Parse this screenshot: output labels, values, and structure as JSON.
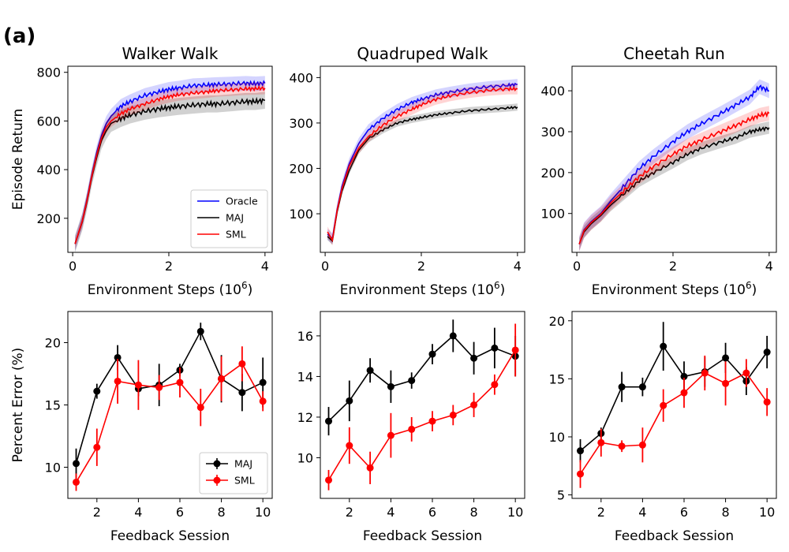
{
  "panel_label": "(a)",
  "colors": {
    "oracle": "#0000ff",
    "maj": "#000000",
    "sml": "#ff0000"
  },
  "chart_data": [
    {
      "type": "line",
      "title": "Walker Walk",
      "xlabel": "Environment Steps (10",
      "xlabel_sup": "6",
      "xlabel_end": ")",
      "ylabel": "Episode Return",
      "xlim": [
        -0.1,
        4.15
      ],
      "ylim": [
        60,
        825
      ],
      "xticks": [
        0,
        2,
        4
      ],
      "yticks": [
        200,
        400,
        600,
        800
      ],
      "legend": {
        "placement": "bottom-right",
        "entries": [
          "Oracle",
          "MAJ",
          "SML"
        ]
      },
      "series": [
        {
          "name": "Oracle",
          "color": "#0000ff",
          "band": 30,
          "x": [
            0.05,
            0.2,
            0.3,
            0.4,
            0.5,
            0.6,
            0.7,
            0.8,
            1.0,
            1.2,
            1.5,
            1.8,
            2.0,
            2.2,
            2.5,
            2.8,
            3.0,
            3.3,
            3.6,
            3.8,
            4.0
          ],
          "y": [
            95,
            190,
            280,
            380,
            470,
            540,
            590,
            620,
            660,
            680,
            705,
            720,
            730,
            735,
            745,
            748,
            750,
            752,
            755,
            753,
            755
          ]
        },
        {
          "name": "MAJ",
          "color": "#000000",
          "band": 35,
          "x": [
            0.05,
            0.2,
            0.3,
            0.4,
            0.5,
            0.6,
            0.7,
            0.8,
            1.0,
            1.2,
            1.5,
            1.8,
            2.0,
            2.2,
            2.5,
            2.8,
            3.0,
            3.3,
            3.6,
            3.8,
            4.0
          ],
          "y": [
            95,
            185,
            270,
            370,
            450,
            520,
            560,
            590,
            610,
            625,
            640,
            650,
            655,
            660,
            665,
            670,
            670,
            675,
            680,
            680,
            685
          ]
        },
        {
          "name": "SML",
          "color": "#ff0000",
          "band": 25,
          "x": [
            0.05,
            0.2,
            0.3,
            0.4,
            0.5,
            0.6,
            0.7,
            0.8,
            1.0,
            1.2,
            1.5,
            1.8,
            2.0,
            2.2,
            2.5,
            2.8,
            3.0,
            3.3,
            3.6,
            3.8,
            4.0
          ],
          "y": [
            95,
            188,
            275,
            375,
            460,
            530,
            575,
            600,
            630,
            650,
            670,
            690,
            700,
            708,
            715,
            720,
            725,
            728,
            732,
            733,
            735
          ]
        }
      ]
    },
    {
      "type": "line",
      "title": "Quadruped Walk",
      "xlabel": "Environment Steps (10",
      "xlabel_sup": "6",
      "xlabel_end": ")",
      "ylabel": "",
      "xlim": [
        -0.1,
        4.15
      ],
      "ylim": [
        15,
        425
      ],
      "xticks": [
        0,
        2,
        4
      ],
      "yticks": [
        100,
        200,
        300,
        400
      ],
      "series": [
        {
          "name": "Oracle",
          "color": "#0000ff",
          "band": 12,
          "x": [
            0.05,
            0.15,
            0.25,
            0.35,
            0.5,
            0.7,
            0.9,
            1.2,
            1.5,
            1.8,
            2.0,
            2.3,
            2.6,
            3.0,
            3.4,
            3.8,
            4.0
          ],
          "y": [
            55,
            45,
            110,
            160,
            210,
            255,
            285,
            310,
            330,
            345,
            352,
            362,
            368,
            375,
            380,
            383,
            385
          ]
        },
        {
          "name": "MAJ",
          "color": "#000000",
          "band": 8,
          "x": [
            0.05,
            0.15,
            0.25,
            0.35,
            0.5,
            0.7,
            0.9,
            1.2,
            1.5,
            1.8,
            2.0,
            2.3,
            2.6,
            3.0,
            3.4,
            3.8,
            4.0
          ],
          "y": [
            50,
            40,
            105,
            150,
            195,
            240,
            265,
            285,
            300,
            308,
            312,
            318,
            322,
            327,
            330,
            333,
            335
          ]
        },
        {
          "name": "SML",
          "color": "#ff0000",
          "band": 12,
          "x": [
            0.05,
            0.15,
            0.25,
            0.35,
            0.5,
            0.7,
            0.9,
            1.2,
            1.5,
            1.8,
            2.0,
            2.3,
            2.6,
            3.0,
            3.4,
            3.8,
            4.0
          ],
          "y": [
            60,
            42,
            108,
            155,
            205,
            245,
            270,
            295,
            315,
            330,
            340,
            352,
            360,
            367,
            372,
            375,
            375
          ]
        }
      ]
    },
    {
      "type": "line",
      "title": "Cheetah Run",
      "xlabel": "Environment Steps (10",
      "xlabel_sup": "6",
      "xlabel_end": ")",
      "ylabel": "",
      "xlim": [
        -0.1,
        4.15
      ],
      "ylim": [
        5,
        460
      ],
      "xticks": [
        0,
        2,
        4
      ],
      "yticks": [
        100,
        200,
        300,
        400
      ],
      "series": [
        {
          "name": "Oracle",
          "color": "#0000ff",
          "band": 18,
          "x": [
            0.05,
            0.15,
            0.3,
            0.5,
            0.7,
            1.0,
            1.3,
            1.6,
            2.0,
            2.3,
            2.6,
            3.0,
            3.3,
            3.6,
            3.8,
            4.0
          ],
          "y": [
            25,
            60,
            80,
            100,
            130,
            170,
            210,
            240,
            275,
            300,
            320,
            345,
            365,
            385,
            410,
            400
          ]
        },
        {
          "name": "MAJ",
          "color": "#000000",
          "band": 15,
          "x": [
            0.05,
            0.15,
            0.3,
            0.5,
            0.7,
            1.0,
            1.3,
            1.6,
            2.0,
            2.3,
            2.6,
            3.0,
            3.3,
            3.6,
            3.8,
            4.0
          ],
          "y": [
            25,
            55,
            75,
            95,
            120,
            150,
            180,
            200,
            225,
            245,
            260,
            275,
            285,
            300,
            305,
            310
          ]
        },
        {
          "name": "SML",
          "color": "#ff0000",
          "band": 18,
          "x": [
            0.05,
            0.15,
            0.3,
            0.5,
            0.7,
            1.0,
            1.3,
            1.6,
            2.0,
            2.3,
            2.6,
            3.0,
            3.3,
            3.6,
            3.8,
            4.0
          ],
          "y": [
            25,
            58,
            78,
            98,
            125,
            158,
            190,
            215,
            245,
            265,
            280,
            300,
            315,
            330,
            340,
            345
          ]
        }
      ]
    },
    {
      "type": "line",
      "title": "",
      "xlabel": "Feedback Session",
      "ylabel": "Percent Error (%)",
      "xlim": [
        0.6,
        10.45
      ],
      "ylim": [
        7.5,
        22.5
      ],
      "xticks": [
        2,
        4,
        6,
        8,
        10
      ],
      "yticks": [
        10,
        15,
        20
      ],
      "legend": {
        "placement": "bottom-right",
        "entries": [
          "MAJ",
          "SML"
        ]
      },
      "series": [
        {
          "name": "MAJ",
          "color": "#000000",
          "x": [
            1,
            2,
            3,
            4,
            5,
            6,
            7,
            8,
            9,
            10
          ],
          "y": [
            10.3,
            16.1,
            18.8,
            16.3,
            16.6,
            17.8,
            20.9,
            17.1,
            16.0,
            16.8
          ],
          "err": [
            1.2,
            0.6,
            1.0,
            0.6,
            1.7,
            0.5,
            0.7,
            1.9,
            1.5,
            2.0
          ]
        },
        {
          "name": "SML",
          "color": "#ff0000",
          "x": [
            1,
            2,
            3,
            4,
            5,
            6,
            7,
            8,
            9,
            10
          ],
          "y": [
            8.8,
            11.6,
            16.9,
            16.6,
            16.4,
            16.8,
            14.8,
            17.1,
            18.3,
            15.3
          ],
          "err": [
            0.7,
            1.5,
            1.8,
            2.0,
            1.0,
            1.2,
            1.5,
            1.8,
            1.4,
            0.8
          ]
        }
      ]
    },
    {
      "type": "line",
      "title": "",
      "xlabel": "Feedback Session",
      "ylabel": "",
      "xlim": [
        0.6,
        10.45
      ],
      "ylim": [
        8.0,
        17.2
      ],
      "xticks": [
        2,
        4,
        6,
        8,
        10
      ],
      "yticks": [
        10,
        12,
        14,
        16
      ],
      "series": [
        {
          "name": "MAJ",
          "color": "#000000",
          "x": [
            1,
            2,
            3,
            4,
            5,
            6,
            7,
            8,
            9,
            10
          ],
          "y": [
            11.8,
            12.8,
            14.3,
            13.5,
            13.8,
            15.1,
            16.0,
            14.9,
            15.4,
            15.0
          ],
          "err": [
            0.7,
            1.0,
            0.6,
            0.8,
            0.4,
            0.5,
            0.8,
            0.8,
            1.0,
            1.0
          ]
        },
        {
          "name": "SML",
          "color": "#ff0000",
          "x": [
            1,
            2,
            3,
            4,
            5,
            6,
            7,
            8,
            9,
            10
          ],
          "y": [
            8.9,
            10.6,
            9.5,
            11.1,
            11.4,
            11.8,
            12.1,
            12.6,
            13.6,
            15.3
          ],
          "err": [
            0.5,
            0.9,
            0.8,
            1.1,
            0.6,
            0.5,
            0.5,
            0.6,
            0.5,
            1.3
          ]
        }
      ]
    },
    {
      "type": "line",
      "title": "",
      "xlabel": "Feedback Session",
      "ylabel": "",
      "xlim": [
        0.6,
        10.45
      ],
      "ylim": [
        4.7,
        20.8
      ],
      "xticks": [
        2,
        4,
        6,
        8,
        10
      ],
      "yticks": [
        5,
        10,
        15,
        20
      ],
      "series": [
        {
          "name": "MAJ",
          "color": "#000000",
          "x": [
            1,
            2,
            3,
            4,
            5,
            6,
            7,
            8,
            9,
            10
          ],
          "y": [
            8.8,
            10.3,
            14.3,
            14.3,
            17.8,
            15.2,
            15.6,
            16.8,
            14.8,
            17.3
          ],
          "err": [
            1.0,
            0.5,
            1.3,
            0.8,
            2.1,
            1.3,
            1.3,
            1.3,
            1.2,
            1.4
          ]
        },
        {
          "name": "SML",
          "color": "#ff0000",
          "x": [
            1,
            2,
            3,
            4,
            5,
            6,
            7,
            8,
            9,
            10
          ],
          "y": [
            6.8,
            9.5,
            9.2,
            9.3,
            12.7,
            13.8,
            15.5,
            14.6,
            15.5,
            13.0
          ],
          "err": [
            1.2,
            1.2,
            0.5,
            1.5,
            1.4,
            1.3,
            1.5,
            1.9,
            1.2,
            1.2
          ]
        }
      ]
    }
  ]
}
